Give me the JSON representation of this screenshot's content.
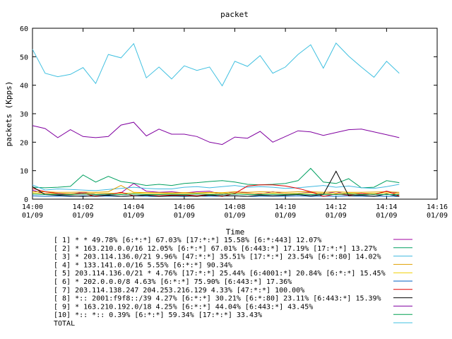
{
  "chart_data": {
    "type": "line",
    "title": "packet",
    "xlabel": "Time",
    "ylabel": "packets (Kpps)",
    "ylim": [
      0,
      60
    ],
    "yticks": [
      "0",
      "10",
      "20",
      "30",
      "40",
      "50",
      "60"
    ],
    "xlim": [
      "14:00",
      "14:16"
    ],
    "xticks": [
      {
        "time": "14:00",
        "date": "01/09"
      },
      {
        "time": "14:02",
        "date": "01/09"
      },
      {
        "time": "14:04",
        "date": "01/09"
      },
      {
        "time": "14:06",
        "date": "01/09"
      },
      {
        "time": "14:08",
        "date": "01/09"
      },
      {
        "time": "14:10",
        "date": "01/09"
      },
      {
        "time": "14:12",
        "date": "01/09"
      },
      {
        "time": "14:14",
        "date": "01/09"
      },
      {
        "time": "14:16",
        "date": "01/09"
      }
    ],
    "x": [
      "14:00:00",
      "14:00:30",
      "14:01:00",
      "14:01:30",
      "14:02:00",
      "14:02:30",
      "14:03:00",
      "14:03:30",
      "14:04:00",
      "14:04:30",
      "14:05:00",
      "14:05:30",
      "14:06:00",
      "14:06:30",
      "14:07:00",
      "14:07:30",
      "14:08:00",
      "14:08:30",
      "14:09:00",
      "14:09:30",
      "14:10:00",
      "14:10:30",
      "14:11:00",
      "14:11:30",
      "14:12:00",
      "14:12:30",
      "14:13:00",
      "14:13:30",
      "14:14:00",
      "14:14:30"
    ],
    "series": [
      {
        "name": "[ 1] * * 49.78%  [6:*:*] 67.03% [17:*:*] 15.58% [6:*:443] 12.07%",
        "color": "#a000a0",
        "values": [
          3.2,
          1.8,
          1.5,
          1.8,
          2.4,
          1.6,
          1.8,
          2.2,
          5.5,
          2.8,
          2.4,
          2.6,
          2.2,
          2.6,
          2.8,
          1.6,
          2.6,
          2.2,
          1.8,
          2.6,
          1.9,
          2.0,
          2.4,
          1.8,
          2.6,
          1.5,
          2.0,
          1.6,
          2.8,
          2.0
        ]
      },
      {
        "name": "[ 2] * 163.210.0.0/16 12.05%  [6:*:*] 67.01% [6:443:*] 17.19% [17:*:*] 13.27%",
        "color": "#00a060",
        "values": [
          4.2,
          4.0,
          4.2,
          4.5,
          8.5,
          6.0,
          8.0,
          6.2,
          5.6,
          4.8,
          5.2,
          4.8,
          5.5,
          5.8,
          6.2,
          6.5,
          6.0,
          5.2,
          5.0,
          5.2,
          5.5,
          6.5,
          10.8,
          6.0,
          5.5,
          7.2,
          4.0,
          4.2,
          6.5,
          5.8
        ]
      },
      {
        "name": "[ 3] * 203.114.136.0/21 9.96%  [47:*:*] 35.51% [17:*:*] 23.54% [6:*:80] 14.02%",
        "color": "#40b8e0",
        "values": [
          5.0,
          3.2,
          3.6,
          3.4,
          3.2,
          3.0,
          3.4,
          3.8,
          4.2,
          3.8,
          3.6,
          3.6,
          4.2,
          4.4,
          4.0,
          4.4,
          4.8,
          4.2,
          4.4,
          4.2,
          3.8,
          4.0,
          4.4,
          4.8,
          4.2,
          4.6,
          4.0,
          3.8,
          4.4,
          5.2
        ]
      },
      {
        "name": "[ 4] * 133.141.0.0/16 5.55%  [6:*:*] 90.34%",
        "color": "#e0a000",
        "values": [
          2.6,
          2.6,
          2.4,
          2.4,
          2.5,
          2.4,
          2.6,
          4.8,
          2.4,
          2.3,
          2.3,
          2.2,
          2.3,
          2.2,
          2.4,
          2.3,
          2.6,
          2.4,
          2.6,
          2.5,
          2.4,
          2.6,
          2.6,
          2.4,
          2.6,
          2.4,
          2.4,
          2.5,
          2.6,
          2.4
        ]
      },
      {
        "name": "[ 5] 203.114.136.0/21 * 4.76%  [17:*:*] 25.44% [6:4001:*] 20.84% [6:*:*] 15.45%",
        "color": "#f0d000",
        "values": [
          2.2,
          2.0,
          2.0,
          1.9,
          2.0,
          2.0,
          2.1,
          2.0,
          2.2,
          2.0,
          1.9,
          2.0,
          2.0,
          2.1,
          2.0,
          2.0,
          2.2,
          2.0,
          2.0,
          2.1,
          2.0,
          2.0,
          2.2,
          2.0,
          2.0,
          2.1,
          2.0,
          2.0,
          2.2,
          2.0
        ]
      },
      {
        "name": "[ 6] * 202.0.0.0/8 4.63%  [6:*:*] 75.90% [6:443:*] 17.36%",
        "color": "#0060c0",
        "values": [
          1.2,
          1.0,
          1.1,
          1.0,
          1.2,
          1.0,
          1.1,
          1.0,
          1.2,
          1.0,
          1.0,
          1.1,
          1.0,
          1.2,
          1.0,
          1.1,
          1.2,
          1.0,
          1.0,
          1.1,
          1.0,
          1.2,
          1.0,
          1.1,
          1.0,
          1.2,
          1.0,
          1.1,
          1.0,
          1.0
        ]
      },
      {
        "name": "[ 7] 203.114.138.247 204.253.216.129 4.33%  [47:*:*] 100.00%",
        "color": "#e00000",
        "values": [
          3.8,
          2.6,
          2.0,
          1.6,
          2.0,
          1.0,
          1.5,
          2.4,
          1.2,
          1.4,
          1.2,
          1.4,
          1.5,
          1.2,
          1.6,
          1.0,
          2.0,
          4.6,
          5.0,
          5.0,
          4.6,
          3.8,
          2.6,
          1.0,
          1.8,
          1.4,
          2.0,
          1.6,
          2.8,
          1.2
        ]
      },
      {
        "name": "[ 8] *:: 2001:f9f8::/39 4.27%  [6:*:*] 30.21% [6:*:80] 23.11% [6:443:*] 15.39%",
        "color": "#000000",
        "values": [
          4.4,
          1.6,
          1.4,
          1.2,
          1.0,
          1.2,
          1.4,
          1.0,
          1.2,
          1.4,
          1.0,
          1.2,
          1.2,
          1.0,
          1.4,
          1.2,
          1.2,
          1.0,
          1.4,
          1.2,
          1.4,
          1.6,
          1.2,
          1.6,
          9.8,
          1.2,
          1.4,
          1.0,
          1.8,
          1.0
        ]
      },
      {
        "name": "[ 9] * 163.210.192.0/18 4.25%  [6:*:*] 44.04% [6:443:*] 43.45%",
        "color": "#8000a0",
        "values": [
          25.8,
          24.8,
          21.6,
          24.4,
          22.0,
          21.6,
          22.0,
          26.0,
          27.0,
          22.2,
          24.6,
          22.8,
          22.8,
          22.0,
          20.0,
          19.2,
          21.8,
          21.4,
          23.8,
          20.0,
          22.0,
          24.0,
          23.6,
          22.4,
          23.4,
          24.4,
          24.6,
          23.6,
          22.6,
          21.6
        ]
      },
      {
        "name": "[10] *:: *:: 0.39%  [6:*:*] 59.34% [17:*:*] 33.43%",
        "color": "#00a050",
        "values": [
          1.8,
          1.6,
          1.7,
          1.6,
          1.8,
          1.6,
          1.7,
          1.6,
          1.8,
          1.6,
          1.6,
          1.7,
          1.6,
          1.8,
          1.6,
          1.7,
          1.8,
          1.6,
          1.6,
          1.7,
          1.6,
          1.8,
          1.6,
          1.7,
          1.6,
          1.8,
          1.6,
          1.7,
          1.6,
          1.6
        ]
      },
      {
        "name": "TOTAL",
        "color": "#40c0e0",
        "values": [
          52.6,
          44.2,
          43.0,
          43.8,
          46.2,
          40.6,
          50.8,
          49.6,
          54.6,
          42.6,
          46.4,
          42.2,
          46.8,
          45.2,
          46.4,
          39.8,
          48.4,
          46.6,
          50.4,
          44.2,
          46.4,
          50.8,
          54.2,
          46.0,
          54.8,
          50.2,
          46.4,
          42.8,
          48.4,
          44.2
        ]
      }
    ],
    "grid": false,
    "legend_position": "bottom"
  }
}
